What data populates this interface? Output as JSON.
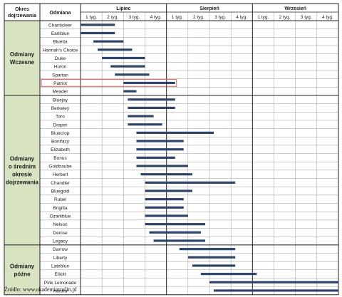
{
  "chart_data": {
    "type": "gantt",
    "headers": {
      "period": "Okres dojrzewania",
      "variety": "Odmiana"
    },
    "months": [
      "Lipiec",
      "Sierpień",
      "Wrzesień"
    ],
    "weeks": [
      "1 tyg.",
      "2 tyg.",
      "3 tyg.",
      "4 tyg.",
      "1 tyg.",
      "2 tyg.",
      "3 tyg.",
      "4 tyg.",
      "1 tyg.",
      "2 tyg.",
      "3 tyg.",
      "4 tyg."
    ],
    "groups": [
      {
        "name": "Odmiany Wczesne",
        "lines": [
          "Odmiany",
          "Wczesne"
        ],
        "from": 0,
        "to": 8
      },
      {
        "name": "Odmiany o średnim okresie dojrzewania",
        "lines": [
          "Odmiany",
          "o średnim",
          "okresie",
          "dojrzewania"
        ],
        "from": 9,
        "to": 26
      },
      {
        "name": "Odmiany późne",
        "lines": [
          "Odmiany",
          "późne"
        ],
        "from": 27,
        "to": 32
      }
    ],
    "x_unit": "week (0 = start of 1st week of Lipiec)",
    "xlim": [
      0,
      12
    ],
    "varieties": [
      {
        "name": "Chanticleer",
        "start": 0.0,
        "end": 1.6
      },
      {
        "name": "Earliblue",
        "start": 0.0,
        "end": 1.6
      },
      {
        "name": "Bluetta",
        "start": 0.6,
        "end": 2.0
      },
      {
        "name": "Hannah's Choice",
        "start": 0.8,
        "end": 2.4
      },
      {
        "name": "Duke",
        "start": 1.0,
        "end": 3.0
      },
      {
        "name": "Huron",
        "start": 1.4,
        "end": 3.0
      },
      {
        "name": "Spartan",
        "start": 1.6,
        "end": 3.2
      },
      {
        "name": "Patriot",
        "start": 2.0,
        "end": 4.4,
        "highlight": true
      },
      {
        "name": "Meader",
        "start": 2.0,
        "end": 2.6
      },
      {
        "name": "Bluejay",
        "start": 2.2,
        "end": 4.4
      },
      {
        "name": "Berkeley",
        "start": 2.2,
        "end": 4.4
      },
      {
        "name": "Toro",
        "start": 2.2,
        "end": 3.4
      },
      {
        "name": "Draper",
        "start": 2.2,
        "end": 3.8
      },
      {
        "name": "Bluecrop",
        "start": 2.6,
        "end": 6.2
      },
      {
        "name": "Bonifacy",
        "start": 2.6,
        "end": 4.8
      },
      {
        "name": "Elizabeth",
        "start": 2.6,
        "end": 4.8
      },
      {
        "name": "Bonus",
        "start": 2.6,
        "end": 4.4
      },
      {
        "name": "Goldtraube",
        "start": 2.6,
        "end": 5.0
      },
      {
        "name": "Herbert",
        "start": 2.8,
        "end": 5.2
      },
      {
        "name": "Chandler",
        "start": 3.0,
        "end": 7.2
      },
      {
        "name": "Bluegold",
        "start": 3.0,
        "end": 5.2
      },
      {
        "name": "Rubel",
        "start": 3.0,
        "end": 4.8
      },
      {
        "name": "Brigitta",
        "start": 3.0,
        "end": 4.8
      },
      {
        "name": "Ozarkblue",
        "start": 3.0,
        "end": 5.0
      },
      {
        "name": "Nelson",
        "start": 3.0,
        "end": 5.8
      },
      {
        "name": "Denise",
        "start": 3.2,
        "end": 5.6
      },
      {
        "name": "Legacy",
        "start": 3.4,
        "end": 5.8
      },
      {
        "name": "Darrow",
        "start": 4.6,
        "end": 7.2
      },
      {
        "name": "Liberty",
        "start": 5.0,
        "end": 7.2
      },
      {
        "name": "Lateblue",
        "start": 5.2,
        "end": 7.2
      },
      {
        "name": "Elliott",
        "start": 5.6,
        "end": 8.2
      },
      {
        "name": "Pink Lemonade",
        "start": 6.0,
        "end": 12.0
      },
      {
        "name": "Aurora",
        "start": 6.2,
        "end": 12.0
      }
    ],
    "colors": {
      "bar": "#2e4469",
      "group_fill": "#d8e3c2",
      "highlight": "#e06060",
      "grid": "#9a9a9a",
      "border": "#222222"
    },
    "source_label": "Źródło: www.akademiaroslin.pl"
  }
}
